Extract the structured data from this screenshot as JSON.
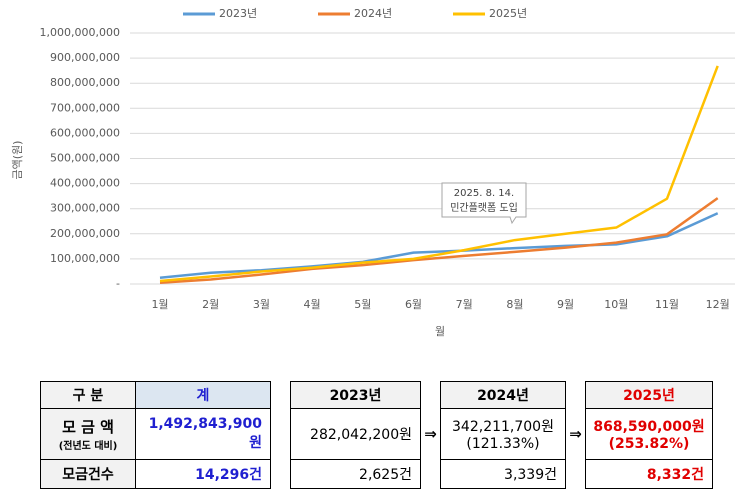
{
  "chart_data": {
    "type": "line",
    "y_label": "금액(원)",
    "x_label": "월",
    "categories": [
      "1월",
      "2월",
      "3월",
      "4월",
      "5월",
      "6월",
      "7월",
      "8월",
      "9월",
      "10월",
      "11월",
      "12월"
    ],
    "series": [
      {
        "name": "2023년",
        "color": "#5b9bd5",
        "values": [
          25000000,
          45000000,
          55000000,
          70000000,
          88000000,
          125000000,
          133000000,
          143000000,
          152000000,
          158000000,
          190000000,
          282042200
        ]
      },
      {
        "name": "2024년",
        "color": "#ed7d31",
        "values": [
          5000000,
          18000000,
          38000000,
          60000000,
          75000000,
          95000000,
          112000000,
          128000000,
          145000000,
          165000000,
          198000000,
          342211700
        ]
      },
      {
        "name": "2025년",
        "color": "#ffc000",
        "values": [
          12000000,
          30000000,
          50000000,
          65000000,
          85000000,
          100000000,
          135000000,
          175000000,
          200000000,
          225000000,
          340000000,
          868590000
        ]
      }
    ],
    "ylim": [
      0,
      1000000000
    ],
    "yticks": [
      {
        "value": 0,
        "label": "-"
      },
      {
        "value": 100000000,
        "label": "100,000,000"
      },
      {
        "value": 200000000,
        "label": "200,000,000"
      },
      {
        "value": 300000000,
        "label": "300,000,000"
      },
      {
        "value": 400000000,
        "label": "400,000,000"
      },
      {
        "value": 500000000,
        "label": "500,000,000"
      },
      {
        "value": 600000000,
        "label": "600,000,000"
      },
      {
        "value": 700000000,
        "label": "700,000,000"
      },
      {
        "value": 800000000,
        "label": "800,000,000"
      },
      {
        "value": 900000000,
        "label": "900,000,000"
      },
      {
        "value": 1000000000,
        "label": "1,000,000,000"
      }
    ],
    "grid": true,
    "legend": "top",
    "annotation": [
      "2025. 8. 14.",
      "민간플랫폼 도입"
    ]
  },
  "table": {
    "header": [
      "구 분",
      "계",
      "2023년",
      "2024년",
      "2025년"
    ],
    "arrow": "⇒",
    "rows": [
      {
        "label": [
          "모 금 액",
          "(전년도 대비)"
        ],
        "total": "1,492,843,900원",
        "y2023": [
          "282,042,200원"
        ],
        "y2024": [
          "342,211,700원",
          "(121.33%)"
        ],
        "y2025": [
          "868,590,000원",
          "(253.82%)"
        ]
      },
      {
        "label": [
          "모금건수"
        ],
        "total": "14,296건",
        "y2023": [
          "2,625건"
        ],
        "y2024": [
          "3,339건"
        ],
        "y2025": [
          "8,332건"
        ]
      }
    ]
  }
}
